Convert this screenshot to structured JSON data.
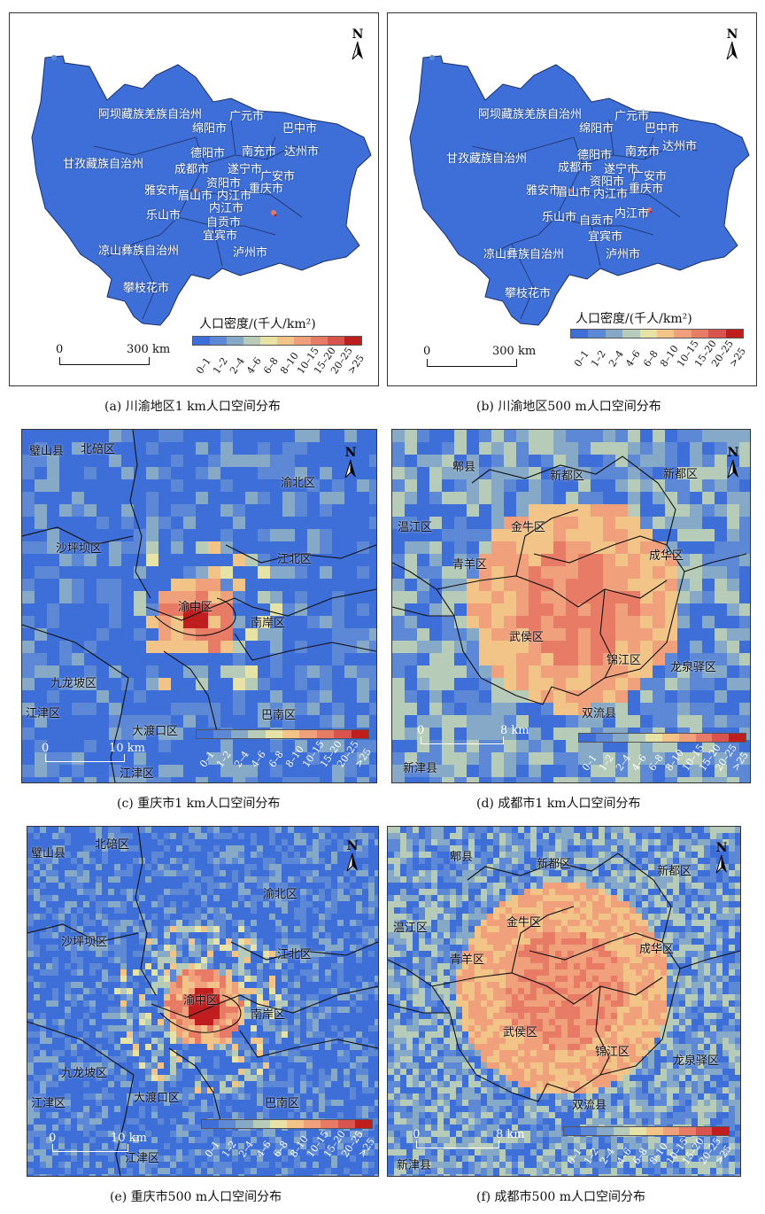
{
  "legend": {
    "title": "人口密度/(千人/km²)",
    "classes": [
      "0–1",
      "1–2",
      "2–4",
      "4–6",
      "6–8",
      "8–10",
      "10–15",
      "15–20",
      "20–25",
      ">25"
    ],
    "colors": [
      "#3e6fd8",
      "#5d88d6",
      "#86a9c8",
      "#b6ccb9",
      "#e7e3a6",
      "#f2c487",
      "#f0a07a",
      "#e87b66",
      "#d9534f",
      "#c01e1e"
    ]
  },
  "panel_a": {
    "caption": "(a) 川渝地区1 km人口空间分布",
    "north": "N",
    "scale": {
      "zero": "0",
      "end": "300 km"
    },
    "labels": [
      "阿坝藏族羌族自治州",
      "广元市",
      "巴中市",
      "绵阳市",
      "德阳市",
      "南充市",
      "达州市",
      "甘孜藏族自治州",
      "成都市",
      "遂宁市",
      "广安市",
      "资阳市",
      "雅安市",
      "眉山市",
      "内江市",
      "重庆市",
      "乐山市",
      "内江市",
      "自贡市",
      "宜宾市",
      "凉山彝族自治州",
      "泸州市",
      "攀枝花市"
    ]
  },
  "panel_b": {
    "caption": "(b) 川渝地区500 m人口空间分布",
    "north": "N",
    "scale": {
      "zero": "0",
      "end": "300 km"
    },
    "labels": [
      "阿坝藏族羌族自治州",
      "广元市",
      "巴中市",
      "绵阳市",
      "南充市",
      "达州市",
      "甘孜藏族自治州",
      "德阳市",
      "成都市",
      "遂宁市",
      "广安市",
      "资阳市",
      "雅安市",
      "眉山市",
      "内江市",
      "重庆市",
      "乐山市",
      "自贡市",
      "内江市",
      "宜宾市",
      "凉山彝族自治州",
      "泸州市",
      "攀枝花市"
    ]
  },
  "panel_c": {
    "caption": "(c) 重庆市1 km人口空间分布",
    "north": "N",
    "scale": {
      "zero": "0",
      "end": "10 km"
    },
    "labels": [
      "璧山县",
      "北碚区",
      "渝北区",
      "沙坪坝区",
      "江北区",
      "渝中区",
      "南岸区",
      "九龙坡区",
      "江津区",
      "巴南区",
      "大渡口区",
      "江津区"
    ]
  },
  "panel_d": {
    "caption": "(d) 成都市1 km人口空间分布",
    "north": "N",
    "scale": {
      "zero": "0",
      "end": "8 km"
    },
    "labels": [
      "郫县",
      "新都区",
      "新都区",
      "温江区",
      "金牛区",
      "青羊区",
      "成华区",
      "武侯区",
      "锦江区",
      "龙泉驿区",
      "双流县",
      "新津县"
    ]
  },
  "panel_e": {
    "caption": "(e) 重庆市500 m人口空间分布",
    "north": "N",
    "scale": {
      "zero": "0",
      "end": "10 km"
    },
    "labels": [
      "璧山县",
      "北碚区",
      "渝北区",
      "沙坪坝区",
      "江北区",
      "渝中区",
      "南岸区",
      "九龙坡区",
      "江津区",
      "大渡口区",
      "巴南区",
      "江津区"
    ]
  },
  "panel_f": {
    "caption": "(f) 成都市500 m人口空间分布",
    "north": "N",
    "scale": {
      "zero": "0",
      "end": "8 km"
    },
    "labels": [
      "郫县",
      "新都区",
      "新都区",
      "温江区",
      "金牛区",
      "成华区",
      "青羊区",
      "武侯区",
      "锦江区",
      "龙泉驿区",
      "双流县",
      "新津县"
    ]
  }
}
